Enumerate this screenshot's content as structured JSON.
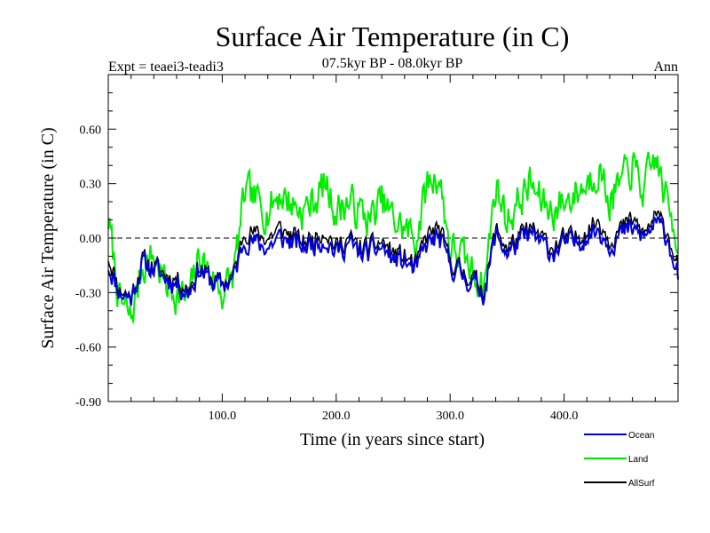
{
  "chart_data": {
    "type": "line",
    "title": "Surface Air Temperature (in C)",
    "subtitle": "07.5kyr BP - 08.0kyr BP",
    "left_note": "Expt = teaei3-teadi3",
    "right_note": "Ann",
    "xlabel": "Time (in years since start)",
    "ylabel": "Surface Air Temperature (in C)",
    "xlim": [
      0,
      500
    ],
    "ylim": [
      -0.9,
      0.9
    ],
    "x_ticks": [
      100,
      200,
      300,
      400
    ],
    "x_tick_labels": [
      "100.0",
      "200.0",
      "300.0",
      "400.0"
    ],
    "y_ticks": [
      -0.9,
      -0.6,
      -0.3,
      0.0,
      0.3,
      0.6
    ],
    "y_tick_labels": [
      "-0.90",
      "-0.60",
      "-0.30",
      "0.00",
      "0.30",
      "0.60"
    ],
    "zero_line": true,
    "legend_position": "bottom-right",
    "series": [
      {
        "name": "Land",
        "color": "#00ee00",
        "x_step": 10,
        "values": [
          0.1,
          -0.35,
          -0.45,
          -0.15,
          -0.1,
          -0.25,
          -0.3,
          -0.35,
          -0.1,
          -0.2,
          -0.3,
          -0.2,
          0.25,
          0.2,
          0.15,
          0.25,
          0.2,
          0.15,
          0.2,
          0.3,
          0.15,
          0.2,
          0.15,
          0.1,
          0.2,
          0.1,
          0.05,
          0.0,
          0.3,
          0.35,
          -0.05,
          -0.1,
          -0.2,
          -0.25,
          0.3,
          0.1,
          0.2,
          0.3,
          0.2,
          0.15,
          0.2,
          0.25,
          0.3,
          0.4,
          0.2,
          0.3,
          0.4,
          0.25,
          0.45,
          0.2,
          0.0
        ]
      },
      {
        "name": "AllSurf",
        "color": "#000000",
        "x_step": 10,
        "values": [
          -0.1,
          -0.28,
          -0.32,
          -0.12,
          -0.15,
          -0.2,
          -0.22,
          -0.28,
          -0.15,
          -0.22,
          -0.25,
          -0.2,
          0.05,
          0.02,
          0.0,
          0.05,
          0.02,
          -0.02,
          0.0,
          0.05,
          -0.05,
          0.0,
          -0.05,
          -0.05,
          -0.02,
          -0.08,
          -0.1,
          -0.15,
          0.02,
          0.05,
          -0.12,
          -0.18,
          -0.22,
          -0.28,
          0.05,
          -0.05,
          0.0,
          0.05,
          0.0,
          -0.05,
          0.0,
          0.0,
          0.05,
          0.1,
          0.0,
          0.05,
          0.1,
          0.02,
          0.12,
          0.05,
          -0.15
        ]
      },
      {
        "name": "Ocean",
        "color": "#0000dd",
        "x_step": 10,
        "values": [
          -0.15,
          -0.3,
          -0.33,
          -0.14,
          -0.17,
          -0.22,
          -0.25,
          -0.3,
          -0.17,
          -0.24,
          -0.26,
          -0.22,
          0.0,
          -0.03,
          -0.05,
          0.0,
          -0.02,
          -0.05,
          -0.03,
          0.0,
          -0.08,
          -0.03,
          -0.08,
          -0.08,
          -0.05,
          -0.12,
          -0.13,
          -0.18,
          -0.03,
          0.0,
          -0.15,
          -0.2,
          -0.25,
          -0.3,
          0.02,
          -0.08,
          -0.03,
          0.02,
          -0.03,
          -0.08,
          -0.03,
          -0.03,
          0.02,
          0.05,
          -0.03,
          0.02,
          0.05,
          0.0,
          0.08,
          0.02,
          -0.2
        ]
      }
    ]
  }
}
